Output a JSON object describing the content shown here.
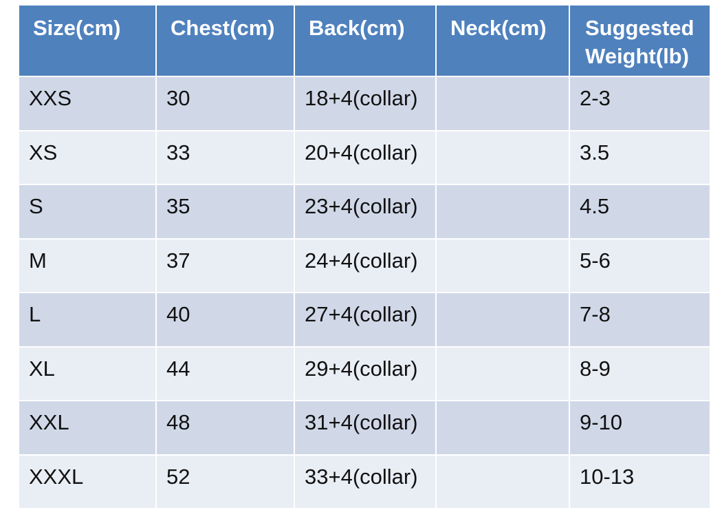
{
  "table": {
    "headers": [
      "Size(cm)",
      "Chest(cm)",
      "Back(cm)",
      "Neck(cm)",
      "Suggested Weight(lb)"
    ],
    "rows": [
      [
        "XXS",
        "30",
        "18+4(collar)",
        "",
        "2-3"
      ],
      [
        "XS",
        "33",
        "20+4(collar)",
        "",
        "3.5"
      ],
      [
        "S",
        "35",
        "23+4(collar)",
        "",
        "4.5"
      ],
      [
        "M",
        "37",
        "24+4(collar)",
        "",
        "5-6"
      ],
      [
        "L",
        "40",
        "27+4(collar)",
        "",
        "7-8"
      ],
      [
        "XL",
        "44",
        "29+4(collar)",
        "",
        "8-9"
      ],
      [
        "XXL",
        "48",
        "31+4(collar)",
        "",
        "9-10"
      ],
      [
        "XXXL",
        "52",
        "33+4(collar)",
        "",
        "10-13"
      ]
    ]
  },
  "colors": {
    "header_bg": "#4f81bd",
    "row_odd_bg": "#d0d8e8",
    "row_even_bg": "#e9edf4",
    "header_text": "#ffffff"
  }
}
